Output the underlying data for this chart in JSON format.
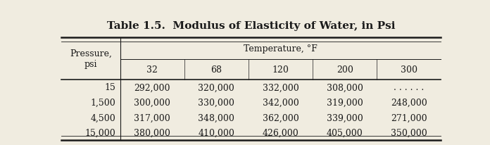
{
  "title": "Table 1.5.  Modulus of Elasticity of Water, in Psi",
  "col_header_top": "Temperature, °F",
  "col_header_row_label": "Pressure,\npsi",
  "temp_cols": [
    "32",
    "68",
    "120",
    "200",
    "300"
  ],
  "pressure_rows": [
    "15",
    "1,500",
    "4,500",
    "15,000"
  ],
  "data": [
    [
      "292,000",
      "320,000",
      "332,000",
      "308,000",
      ". . . . . ."
    ],
    [
      "300,000",
      "330,000",
      "342,000",
      "319,000",
      "248,000"
    ],
    [
      "317,000",
      "348,000",
      "362,000",
      "339,000",
      "271,000"
    ],
    [
      "380,000",
      "410,000",
      "426,000",
      "405,000",
      "350,000"
    ]
  ],
  "bg_color": "#f0ece0",
  "text_color": "#1a1a1a",
  "title_fontsize": 11,
  "header_fontsize": 9,
  "cell_fontsize": 9
}
